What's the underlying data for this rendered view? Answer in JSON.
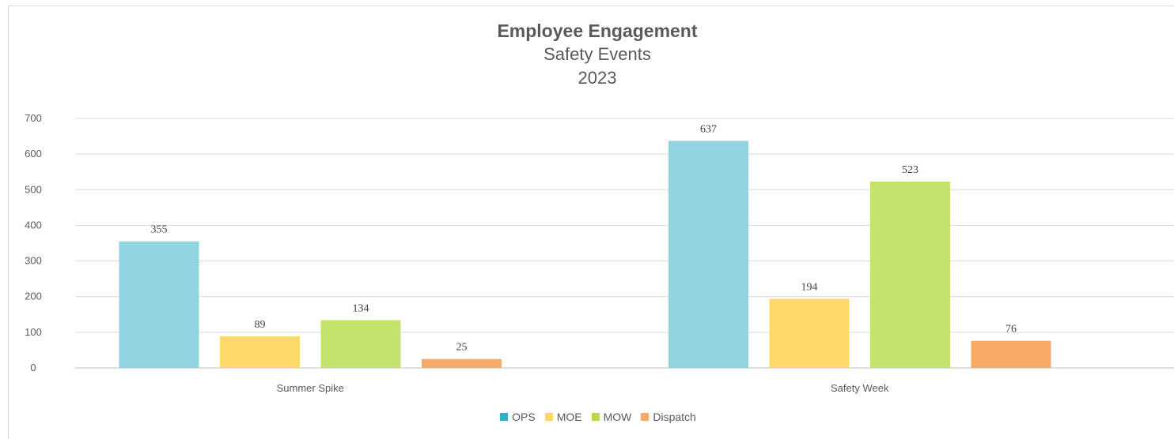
{
  "chart_data": {
    "type": "bar",
    "title": "Employee Engagement",
    "subtitle": "Safety Events",
    "subtitle2": "2023",
    "categories": [
      "Summer Spike",
      "Safety Week"
    ],
    "series": [
      {
        "name": "OPS",
        "values": [
          355,
          637
        ],
        "color": "#8fd4e0",
        "legend_color": "#2db1c9"
      },
      {
        "name": "MOE",
        "values": [
          89,
          194
        ],
        "color": "#fdd86b",
        "legend_color": "#fdd86b"
      },
      {
        "name": "MOW",
        "values": [
          134,
          523
        ],
        "color": "#c4e36c",
        "legend_color": "#b4dc4e"
      },
      {
        "name": "Dispatch",
        "values": [
          25,
          76
        ],
        "color": "#f8aa66",
        "legend_color": "#f8aa66"
      }
    ],
    "ylim": [
      0,
      700
    ],
    "yticks": [
      "0",
      "100",
      "200",
      "300",
      "400",
      "500",
      "600",
      "700"
    ],
    "grid": true,
    "legend_position": "bottom"
  }
}
